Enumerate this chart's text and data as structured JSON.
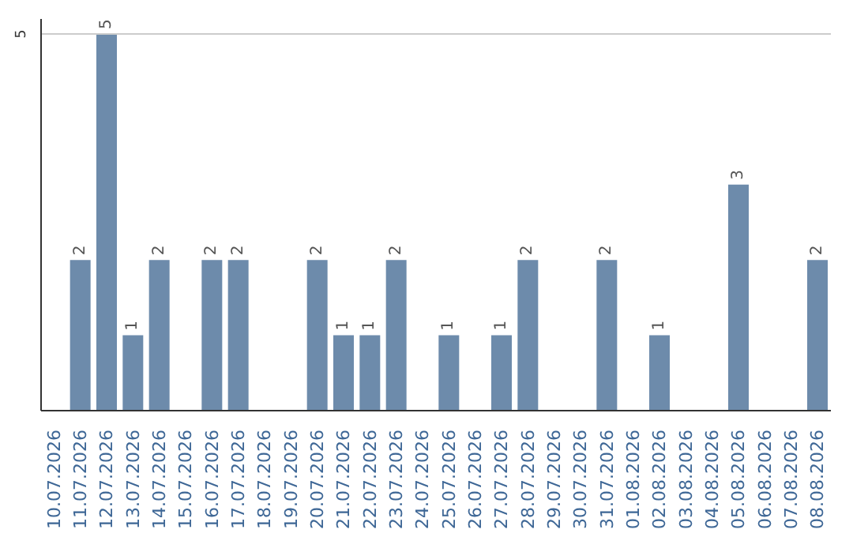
{
  "chart_data": {
    "type": "bar",
    "categories": [
      "10.07.2026",
      "11.07.2026",
      "12.07.2026",
      "13.07.2026",
      "14.07.2026",
      "15.07.2026",
      "16.07.2026",
      "17.07.2026",
      "18.07.2026",
      "19.07.2026",
      "20.07.2026",
      "21.07.2026",
      "22.07.2026",
      "23.07.2026",
      "24.07.2026",
      "25.07.2026",
      "26.07.2026",
      "27.07.2026",
      "28.07.2026",
      "29.07.2026",
      "30.07.2026",
      "31.07.2026",
      "01.08.2026",
      "02.08.2026",
      "03.08.2026",
      "04.08.2026",
      "05.08.2026",
      "06.08.2026",
      "07.08.2026",
      "08.08.2026"
    ],
    "values": [
      0,
      2,
      5,
      1,
      2,
      0,
      2,
      2,
      0,
      0,
      2,
      1,
      1,
      2,
      0,
      1,
      0,
      1,
      2,
      0,
      0,
      2,
      0,
      1,
      0,
      0,
      3,
      0,
      0,
      2
    ],
    "value_labels": [
      null,
      "2",
      "5",
      "1",
      "2",
      null,
      "2",
      "2",
      null,
      null,
      "2",
      "1",
      "1",
      "2",
      null,
      "1",
      null,
      "1",
      "2",
      null,
      null,
      "2",
      null,
      "1",
      null,
      null,
      "3",
      null,
      null,
      "2"
    ],
    "color": "#6d8bab",
    "ylim": [
      0,
      5.2
    ],
    "yticks": [
      5
    ],
    "grid": "y"
  }
}
